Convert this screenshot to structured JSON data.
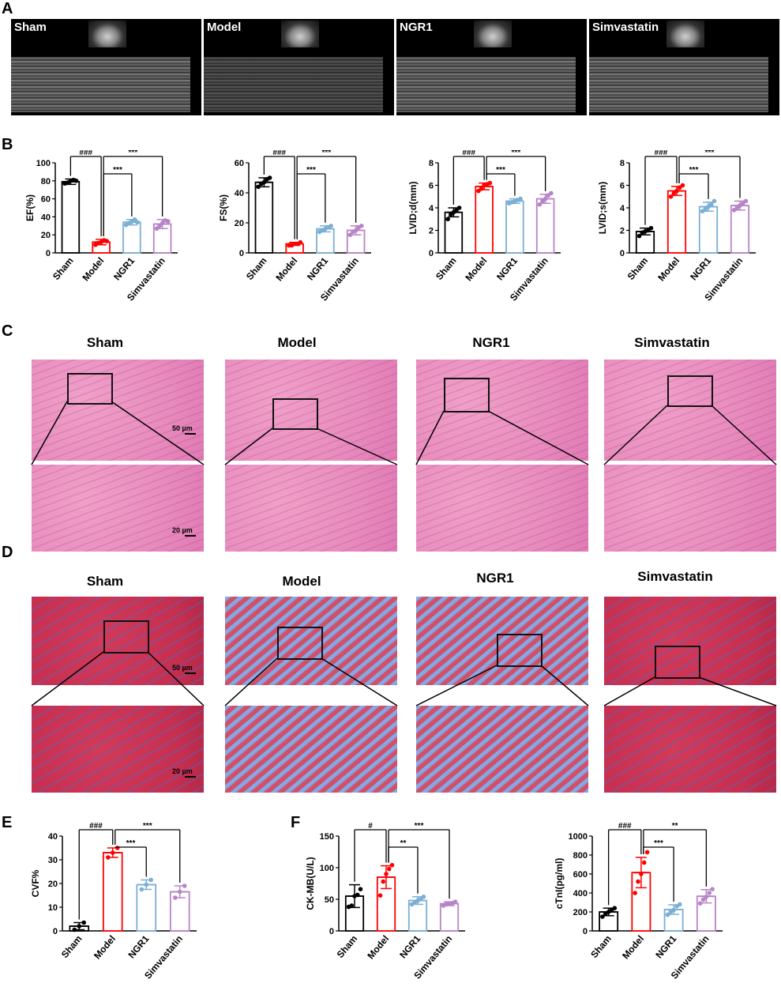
{
  "panels": {
    "A": "A",
    "B": "B",
    "C": "C",
    "D": "D",
    "E": "E",
    "F": "F"
  },
  "groups": [
    "Sham",
    "Model",
    "NGR1",
    "Simvastatin"
  ],
  "scalebars": {
    "low": "50 µm",
    "high": "20 µm"
  },
  "colors": {
    "Sham": "#000000",
    "Model": "#ff0000",
    "NGR1": "#7bafd4",
    "Simvastatin": "#b784c7"
  },
  "chart_data": [
    {
      "type": "bar",
      "ylabel": "EF(%)",
      "categories": [
        "Sham",
        "Model",
        "NGR1",
        "Simvastatin"
      ],
      "values": [
        79,
        12,
        34,
        32
      ],
      "sd": [
        3,
        3,
        3,
        5
      ],
      "ylim": [
        0,
        100
      ],
      "yticks": [
        0,
        20,
        40,
        60,
        80,
        100
      ],
      "points": [
        [
          77,
          78,
          80,
          81,
          80
        ],
        [
          9,
          11,
          12,
          14,
          13
        ],
        [
          31,
          33,
          35,
          37,
          34
        ],
        [
          27,
          30,
          33,
          36,
          35
        ]
      ],
      "annotations": [
        {
          "from": 0,
          "to": 1,
          "label": "###"
        },
        {
          "from": 1,
          "to": 2,
          "label": "***"
        },
        {
          "from": 1,
          "to": 3,
          "label": "***"
        }
      ]
    },
    {
      "type": "bar",
      "ylabel": "FS(%)",
      "categories": [
        "Sham",
        "Model",
        "NGR1",
        "Simvastatin"
      ],
      "values": [
        47,
        6,
        16,
        15
      ],
      "sd": [
        3,
        1,
        2,
        3
      ],
      "ylim": [
        0,
        60
      ],
      "yticks": [
        0,
        20,
        40,
        60
      ],
      "points": [
        [
          44,
          46,
          47,
          49,
          50
        ],
        [
          5,
          5,
          6,
          6,
          7
        ],
        [
          14,
          15,
          16,
          17,
          18
        ],
        [
          12,
          14,
          15,
          17,
          18
        ]
      ],
      "annotations": [
        {
          "from": 0,
          "to": 1,
          "label": "###"
        },
        {
          "from": 1,
          "to": 2,
          "label": "***"
        },
        {
          "from": 1,
          "to": 3,
          "label": "***"
        }
      ]
    },
    {
      "type": "bar",
      "ylabel": "LVID;d(mm)",
      "categories": [
        "Sham",
        "Model",
        "NGR1",
        "Simvastatin"
      ],
      "values": [
        3.6,
        5.9,
        4.6,
        4.8
      ],
      "sd": [
        0.4,
        0.3,
        0.2,
        0.4
      ],
      "ylim": [
        0,
        8
      ],
      "yticks": [
        0,
        2,
        4,
        6,
        8
      ],
      "points": [
        [
          3.0,
          3.4,
          3.6,
          3.8,
          4.0
        ],
        [
          5.5,
          5.7,
          6.0,
          6.1,
          6.2
        ],
        [
          4.4,
          4.5,
          4.6,
          4.7,
          4.8
        ],
        [
          4.3,
          4.6,
          4.8,
          5.1,
          5.3
        ]
      ],
      "annotations": [
        {
          "from": 0,
          "to": 1,
          "label": "###"
        },
        {
          "from": 1,
          "to": 2,
          "label": "***"
        },
        {
          "from": 1,
          "to": 3,
          "label": "***"
        }
      ]
    },
    {
      "type": "bar",
      "ylabel": "LVID;s(mm)",
      "categories": [
        "Sham",
        "Model",
        "NGR1",
        "Simvastatin"
      ],
      "values": [
        1.9,
        5.5,
        4.1,
        4.2
      ],
      "sd": [
        0.3,
        0.4,
        0.4,
        0.4
      ],
      "ylim": [
        0,
        8
      ],
      "yticks": [
        0,
        2,
        4,
        6,
        8
      ],
      "points": [
        [
          1.5,
          1.8,
          1.9,
          2.0,
          2.2
        ],
        [
          5.0,
          5.3,
          5.5,
          5.8,
          6.0
        ],
        [
          3.7,
          3.9,
          4.1,
          4.3,
          4.6
        ],
        [
          3.8,
          4.0,
          4.2,
          4.4,
          4.6
        ]
      ],
      "annotations": [
        {
          "from": 0,
          "to": 1,
          "label": "###"
        },
        {
          "from": 1,
          "to": 2,
          "label": "***"
        },
        {
          "from": 1,
          "to": 3,
          "label": "***"
        }
      ]
    },
    {
      "type": "bar",
      "ylabel": "CVF%",
      "categories": [
        "Sham",
        "Model",
        "NGR1",
        "Simvastatin"
      ],
      "values": [
        2,
        33,
        19.5,
        16.5
      ],
      "sd": [
        1.5,
        2,
        2,
        2.5
      ],
      "ylim": [
        0,
        40
      ],
      "yticks": [
        0,
        10,
        20,
        30,
        40
      ],
      "points": [
        [
          0.5,
          2,
          3.5
        ],
        [
          31,
          33,
          35
        ],
        [
          17.5,
          19.5,
          21.5
        ],
        [
          14,
          16.5,
          19
        ]
      ],
      "annotations": [
        {
          "from": 0,
          "to": 1,
          "label": "###"
        },
        {
          "from": 1,
          "to": 2,
          "label": "***"
        },
        {
          "from": 1,
          "to": 3,
          "label": "***"
        }
      ]
    },
    {
      "type": "bar",
      "ylabel": "CK-MB(U/L)",
      "categories": [
        "Sham",
        "Model",
        "NGR1",
        "Simvastatin"
      ],
      "values": [
        55,
        85,
        48,
        43
      ],
      "sd": [
        18,
        18,
        6,
        3
      ],
      "ylim": [
        0,
        150
      ],
      "yticks": [
        0,
        50,
        100,
        150
      ],
      "points": [
        [
          38,
          40,
          55,
          57,
          66
        ],
        [
          56,
          78,
          90,
          98,
          104
        ],
        [
          42,
          45,
          48,
          50,
          54
        ],
        [
          40,
          42,
          43,
          44,
          46
        ]
      ],
      "annotations": [
        {
          "from": 0,
          "to": 1,
          "label": "#"
        },
        {
          "from": 1,
          "to": 2,
          "label": "**"
        },
        {
          "from": 1,
          "to": 3,
          "label": "***"
        }
      ]
    },
    {
      "type": "bar",
      "ylabel": "cTnI(pg/ml)",
      "categories": [
        "Sham",
        "Model",
        "NGR1",
        "Simvastatin"
      ],
      "values": [
        200,
        615,
        225,
        365
      ],
      "sd": [
        40,
        160,
        50,
        70
      ],
      "ylim": [
        0,
        1000
      ],
      "yticks": [
        0,
        200,
        400,
        600,
        800,
        1000
      ],
      "points": [
        [
          150,
          180,
          200,
          220,
          240
        ],
        [
          400,
          520,
          600,
          720,
          830
        ],
        [
          170,
          200,
          220,
          260,
          280
        ],
        [
          290,
          330,
          360,
          400,
          440
        ]
      ],
      "annotations": [
        {
          "from": 0,
          "to": 1,
          "label": "###"
        },
        {
          "from": 1,
          "to": 2,
          "label": "***"
        },
        {
          "from": 1,
          "to": 3,
          "label": "**"
        }
      ]
    }
  ]
}
